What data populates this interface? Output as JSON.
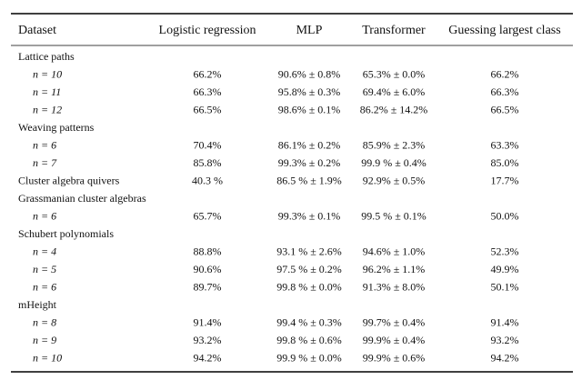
{
  "table": {
    "header": [
      "Dataset",
      "Logistic regression",
      "MLP",
      "Transformer",
      "Guessing largest class"
    ],
    "rows": [
      [
        "Lattice paths"
      ],
      [
        "n = 10",
        "66.2%",
        "90.6% ± 0.8%",
        "65.3% ± 0.0%",
        "66.2%"
      ],
      [
        "n = 11",
        "66.3%",
        "95.8% ± 0.3%",
        "69.4% ± 6.0%",
        "66.3%"
      ],
      [
        "n = 12",
        "66.5%",
        "98.6% ± 0.1%",
        "86.2% ± 14.2%",
        "66.5%"
      ],
      [
        "Weaving patterns"
      ],
      [
        "n = 6",
        "70.4%",
        "86.1% ± 0.2%",
        "85.9% ± 2.3%",
        "63.3%"
      ],
      [
        "n = 7",
        "85.8%",
        "99.3% ± 0.2%",
        "99.9 % ± 0.4%",
        "85.0%"
      ],
      [
        "Cluster algebra quivers",
        "40.3 %",
        "86.5 % ± 1.9%",
        "92.9% ± 0.5%",
        "17.7%"
      ],
      [
        "Grassmanian cluster algebras"
      ],
      [
        "n = 6",
        "65.7%",
        "99.3% ± 0.1%",
        "99.5 % ± 0.1%",
        "50.0%"
      ],
      [
        "Schubert polynomials"
      ],
      [
        "n = 4",
        "88.8%",
        "93.1 % ± 2.6%",
        "94.6% ± 1.0%",
        "52.3%"
      ],
      [
        "n = 5",
        "90.6%",
        "97.5 % ± 0.2%",
        "96.2% ± 1.1%",
        "49.9%"
      ],
      [
        "n = 6",
        "89.7%",
        "99.8 % ± 0.0%",
        "91.3% ± 8.0%",
        "50.1%"
      ],
      [
        "mHeight"
      ],
      [
        "n = 8",
        "91.4%",
        "99.4 % ± 0.3%",
        "99.7% ± 0.4%",
        "91.4%"
      ],
      [
        "n = 9",
        "93.2%",
        "99.8 % ± 0.6%",
        "99.9% ± 0.4%",
        "93.2%"
      ],
      [
        "n = 10",
        "94.2%",
        "99.9 % ± 0.0%",
        "99.9% ± 0.6%",
        "94.2%"
      ]
    ]
  }
}
